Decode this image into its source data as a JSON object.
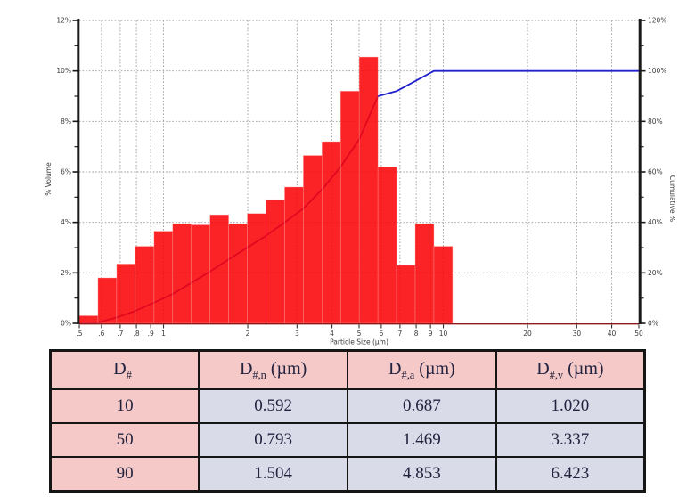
{
  "chart_data": {
    "type": "histogram+line",
    "title": "",
    "x_axis": {
      "title": "Particle Size (µm)",
      "scale": "log",
      "min": 0.5,
      "max": 50,
      "ticks": [
        0.5,
        0.6,
        0.7,
        0.8,
        0.9,
        1,
        2,
        3,
        4,
        5,
        6,
        7,
        8,
        9,
        10,
        20,
        30,
        40,
        50
      ],
      "tick_labels": [
        ".5",
        ".6",
        ".7",
        ".8",
        ".9",
        "1",
        "2",
        "3",
        "4",
        "5",
        "6",
        "7",
        "8",
        "9",
        "10",
        "20",
        "30",
        "40",
        "50"
      ]
    },
    "left_axis": {
      "title": "% Volume",
      "min": 0,
      "max": 12,
      "major_step": 2,
      "minor_step": 1,
      "tick_labels": [
        "0%",
        "2%",
        "4%",
        "6%",
        "8%",
        "10%",
        "12%"
      ]
    },
    "right_axis": {
      "title": "Cumulative %",
      "min": 0,
      "max": 120,
      "major_step": 20,
      "minor_step": 10,
      "tick_labels": [
        "0%",
        "20%",
        "40%",
        "60%",
        "80%",
        "100%",
        "120%"
      ]
    },
    "histogram": {
      "series_name": "% Volume",
      "bin_edges_um": [
        0.5,
        0.583,
        0.68,
        0.793,
        0.925,
        1.078,
        1.257,
        1.466,
        1.709,
        1.993,
        2.324,
        2.71,
        3.16,
        3.684,
        4.295,
        5.008,
        5.839,
        6.808,
        7.938,
        9.255,
        10.79
      ],
      "volume_pct": [
        0.3,
        1.8,
        2.35,
        3.05,
        3.65,
        3.95,
        3.9,
        4.3,
        3.95,
        4.35,
        4.9,
        5.4,
        6.65,
        7.2,
        9.2,
        10.55,
        6.2,
        2.3,
        3.95,
        3.05
      ]
    },
    "cumulative_line": {
      "series_name": "Cumulative %",
      "x_um": [
        0.5,
        0.583,
        0.68,
        0.793,
        0.925,
        1.078,
        1.257,
        1.466,
        1.709,
        1.993,
        2.324,
        2.71,
        3.16,
        3.684,
        4.295,
        5.008,
        5.839,
        6.808,
        9.255,
        50
      ],
      "pct": [
        0.0,
        0.3,
        2.3,
        4.9,
        8.2,
        11.6,
        16.0,
        20.5,
        25.3,
        30.0,
        34.7,
        40.0,
        45.5,
        53.0,
        62.0,
        73.0,
        90.0,
        92.0,
        100.0,
        100.0
      ]
    },
    "grid": "dotted both axes at major ticks",
    "legend": "none",
    "colors": {
      "bar_fill": "#fa0507",
      "cumulative_line": "#2020ce",
      "x_axis_line": "#8b1a1a",
      "y_axis_line": "#1a1a1a",
      "gridline": "#9a9a9a",
      "tick_text": "#3a3a3a"
    }
  },
  "table": {
    "headers": [
      {
        "main": "D",
        "sub": "#",
        "unit": ""
      },
      {
        "main": "D",
        "sub": "#,n",
        "unit": "(µm)"
      },
      {
        "main": "D",
        "sub": "#,a",
        "unit": "(µm)"
      },
      {
        "main": "D",
        "sub": "#,v",
        "unit": "(µm)"
      }
    ],
    "rows": [
      [
        "10",
        "0.592",
        "0.687",
        "1.020"
      ],
      [
        "50",
        "0.793",
        "1.469",
        "3.337"
      ],
      [
        "90",
        "1.504",
        "4.853",
        "6.423"
      ]
    ]
  }
}
